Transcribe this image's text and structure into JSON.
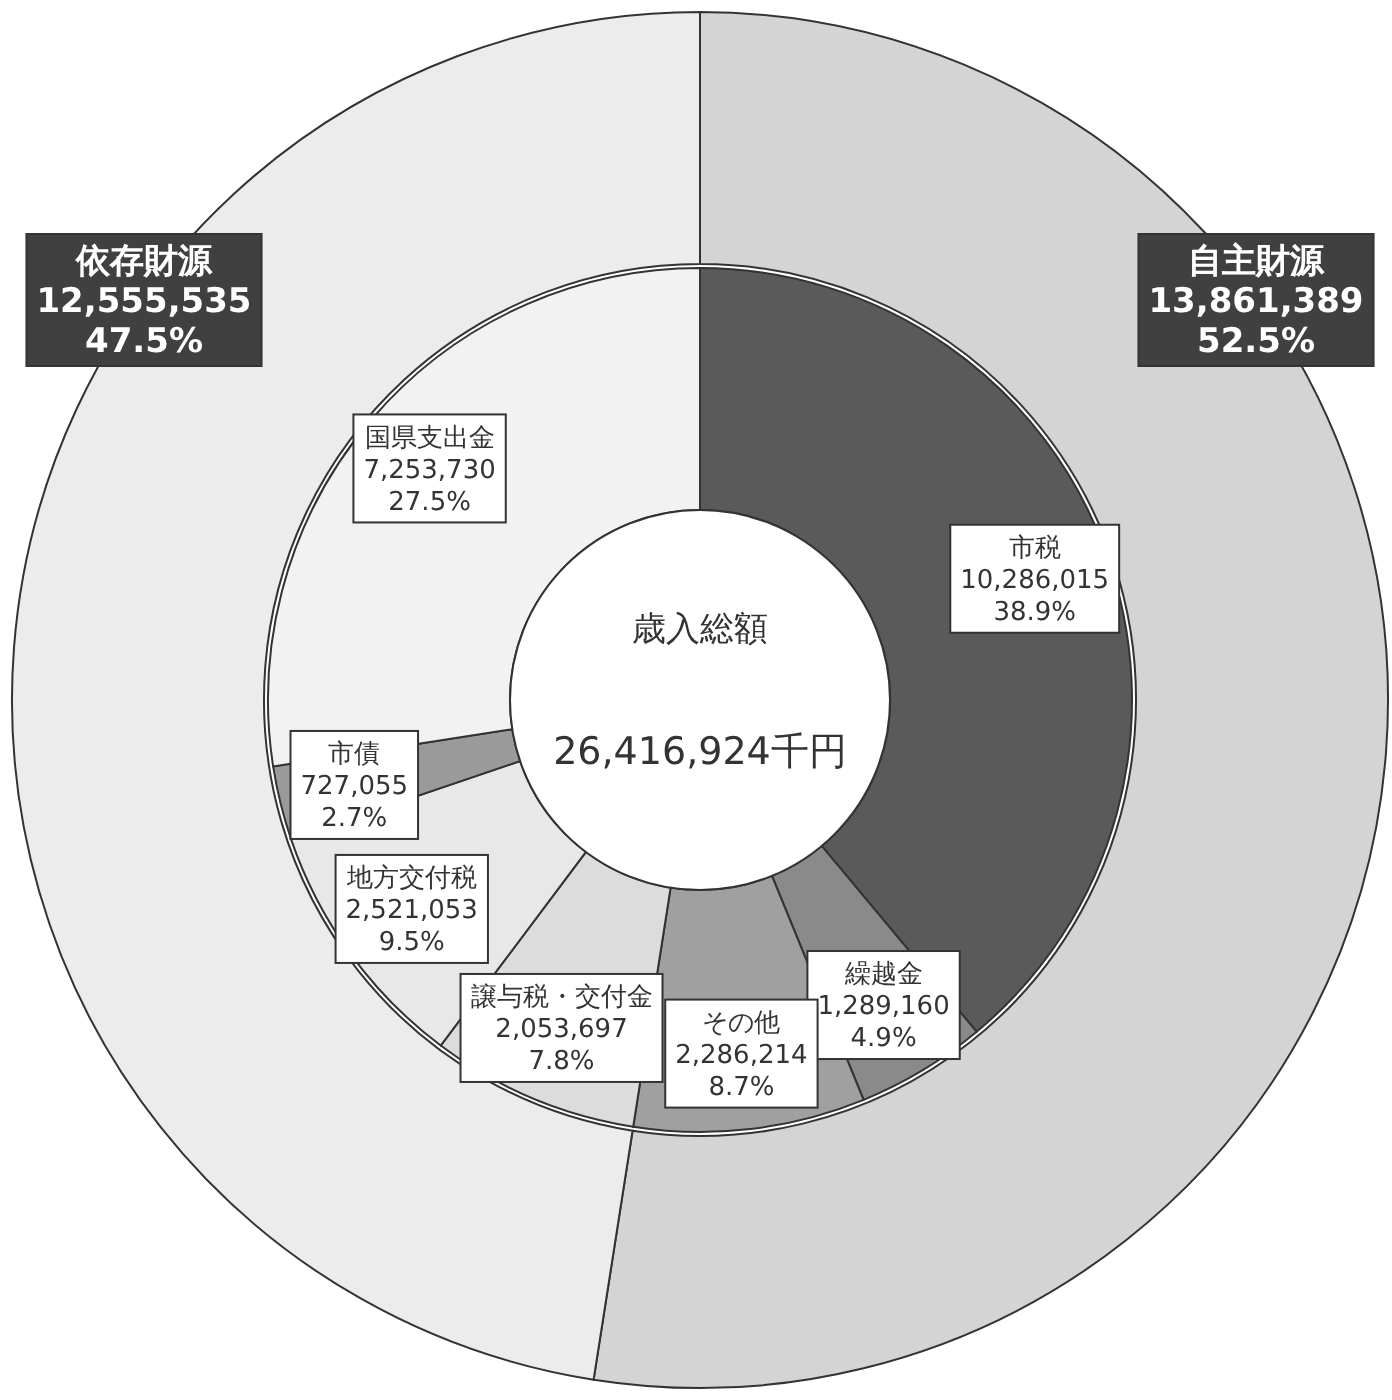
{
  "chart_data": [
    {
      "type": "donut",
      "categories": [
        "自主財源",
        "依存財源"
      ],
      "values": [
        13861389,
        12555535
      ],
      "colors": [
        "#d4d4d4",
        "#ececec"
      ],
      "value_labels": [
        "13,861,389\n52.5%",
        "12,555,535\n47.5%"
      ]
    },
    {
      "type": "donut",
      "categories": [
        "市税",
        "繰越金",
        "その他",
        "譲与税・交付金",
        "地方交付税",
        "市債",
        "国県支出金"
      ],
      "values": [
        10286015,
        1289160,
        2286214,
        2053697,
        2521053,
        727055,
        7253730
      ],
      "colors": [
        "#5a5a5a",
        "#8a8a8a",
        "#a0a0a0",
        "#dcdcdc",
        "#e8e8e8",
        "#9a9a9a",
        "#f2f2f2"
      ],
      "value_labels": [
        "10,286,015\n38.9%",
        "1,289,160\n4.9%",
        "2,286,214\n8.7%",
        "2,053,697\n7.8%",
        "2,521,053\n9.5%",
        "727,055\n2.7%",
        "7,253,730\n27.5%"
      ],
      "annotations": [
        "歳入総額",
        "26,416,924千円"
      ]
    }
  ]
}
